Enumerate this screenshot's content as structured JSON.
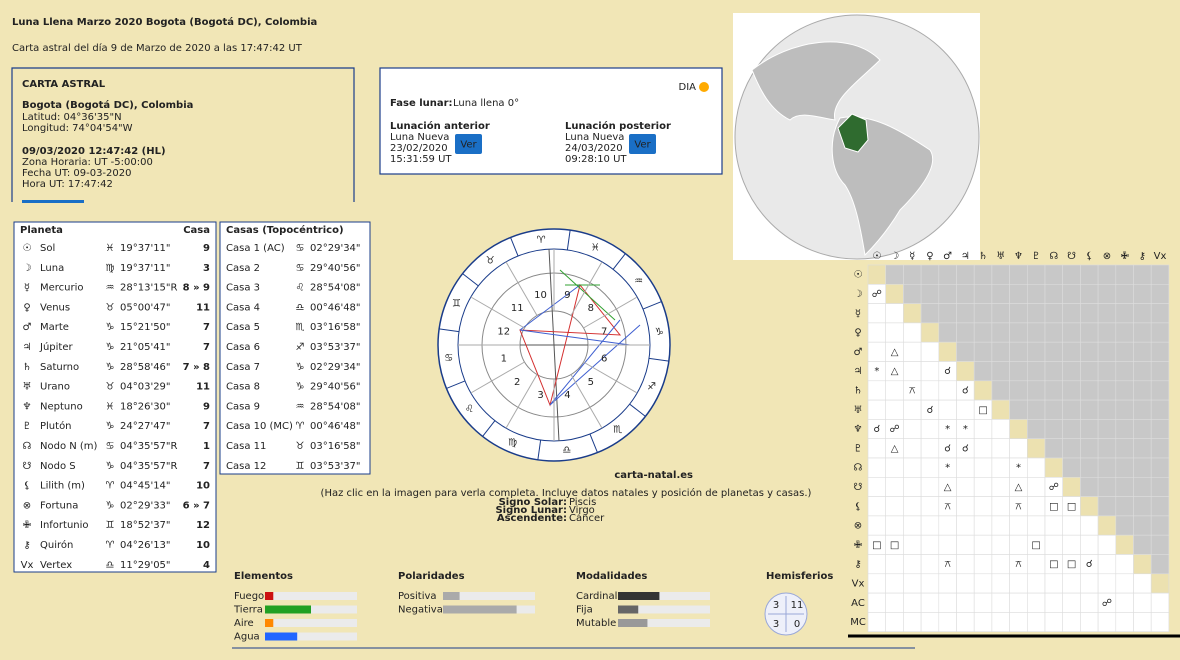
{
  "header": {
    "title": "Luna Llena Marzo 2020 Bogota (Bogotá DC), Colombia",
    "subtitle": "Carta astral del día 9 de Marzo de 2020 a las 17:47:42 UT"
  },
  "info": {
    "heading": "CARTA ASTRAL",
    "place": "Bogota (Bogotá DC), Colombia",
    "coords": [
      "Latitud: 04°36'35\"N",
      "Longitud: 74°04'54\"W"
    ],
    "datetime": "09/03/2020 12:47:42 (HL)",
    "times": [
      "Zona Horaria: UT -5:00:00",
      "Fecha UT: 09-03-2020",
      "Hora UT: 17:47:42"
    ]
  },
  "moon": {
    "day": "DIA",
    "phase_label": "Fase lunar:",
    "phase": "Luna llena 0°",
    "prev": {
      "title": "Lunación anterior",
      "lines": [
        "Luna Nueva",
        "23/02/2020",
        "15:31:59 UT"
      ],
      "button": "Ver"
    },
    "next": {
      "title": "Lunación posterior",
      "lines": [
        "Luna Nueva",
        "24/03/2020",
        "09:28:10 UT"
      ],
      "button": "Ver"
    }
  },
  "planets": {
    "headers": [
      "Planeta",
      "Casa"
    ],
    "rows": [
      {
        "symbol": "☉",
        "name": "Sol",
        "sign": "♓",
        "position": "19°37'11\"",
        "house": "9"
      },
      {
        "symbol": "☽",
        "name": "Luna",
        "sign": "♍",
        "position": "19°37'11\"",
        "house": "3"
      },
      {
        "symbol": "☿",
        "name": "Mercurio",
        "sign": "♒",
        "position": "28°13'15\"R",
        "house": "8 » 9"
      },
      {
        "symbol": "♀",
        "name": "Venus",
        "sign": "♉",
        "position": "05°00'47\"",
        "house": "11"
      },
      {
        "symbol": "♂",
        "name": "Marte",
        "sign": "♑",
        "position": "15°21'50\"",
        "house": "7"
      },
      {
        "symbol": "♃",
        "name": "Júpiter",
        "sign": "♑",
        "position": "21°05'41\"",
        "house": "7"
      },
      {
        "symbol": "♄",
        "name": "Saturno",
        "sign": "♑",
        "position": "28°58'46\"",
        "house": "7 » 8"
      },
      {
        "symbol": "♅",
        "name": "Urano",
        "sign": "♉",
        "position": "04°03'29\"",
        "house": "11"
      },
      {
        "symbol": "♆",
        "name": "Neptuno",
        "sign": "♓",
        "position": "18°26'30\"",
        "house": "9"
      },
      {
        "symbol": "♇",
        "name": "Plutón",
        "sign": "♑",
        "position": "24°27'47\"",
        "house": "7"
      },
      {
        "symbol": "☊",
        "name": "Nodo N (m)",
        "sign": "♋",
        "position": "04°35'57\"R",
        "house": "1"
      },
      {
        "symbol": "☋",
        "name": "Nodo S",
        "sign": "♑",
        "position": "04°35'57\"R",
        "house": "7"
      },
      {
        "symbol": "⚸",
        "name": "Lilith (m)",
        "sign": "♈",
        "position": "04°45'14\"",
        "house": "10"
      },
      {
        "symbol": "⊗",
        "name": "Fortuna",
        "sign": "♑",
        "position": "02°29'33\"",
        "house": "6 » 7"
      },
      {
        "symbol": "✙",
        "name": "Infortunio",
        "sign": "♊",
        "position": "18°52'37\"",
        "house": "12"
      },
      {
        "symbol": "⚷",
        "name": "Quirón",
        "sign": "♈",
        "position": "04°26'13\"",
        "house": "10"
      },
      {
        "symbol": "Vx",
        "name": "Vertex",
        "sign": "♎",
        "position": "11°29'05\"",
        "house": "4"
      }
    ]
  },
  "houses": {
    "header": "Casas (Topocéntrico)",
    "rows": [
      {
        "name": "Casa 1 (AC)",
        "sign": "♋",
        "position": "02°29'34\""
      },
      {
        "name": "Casa 2",
        "sign": "♋",
        "position": "29°40'56\""
      },
      {
        "name": "Casa 3",
        "sign": "♌",
        "position": "28°54'08\""
      },
      {
        "name": "Casa 4",
        "sign": "♎",
        "position": "00°46'48\""
      },
      {
        "name": "Casa 5",
        "sign": "♏",
        "position": "03°16'58\""
      },
      {
        "name": "Casa 6",
        "sign": "♐",
        "position": "03°53'37\""
      },
      {
        "name": "Casa 7",
        "sign": "♑",
        "position": "02°29'34\""
      },
      {
        "name": "Casa 8",
        "sign": "♑",
        "position": "29°40'56\""
      },
      {
        "name": "Casa 9",
        "sign": "♒",
        "position": "28°54'08\""
      },
      {
        "name": "Casa 10 (MC)",
        "sign": "♈",
        "position": "00°46'48\""
      },
      {
        "name": "Casa 11",
        "sign": "♉",
        "position": "03°16'58\""
      },
      {
        "name": "Casa 12",
        "sign": "♊",
        "position": "03°53'37\""
      }
    ]
  },
  "wheel": {
    "signs": [
      "♈",
      "♉",
      "♊",
      "♋",
      "♌",
      "♍",
      "♎",
      "♏",
      "♐",
      "♑",
      "♒",
      "♓"
    ],
    "sign_colors": [
      "#d42020",
      "#2a9a2a",
      "#e08a00",
      "#2050d0"
    ],
    "houses": [
      "1",
      "2",
      "3",
      "4",
      "5",
      "6",
      "7",
      "8",
      "9",
      "10",
      "11",
      "12"
    ],
    "site": "carta-natal.es",
    "caption": "(Haz clic en la imagen para verla completa. Incluye datos natales y posición de planetas y casas.)",
    "summary": [
      {
        "label": "Signo Solar:",
        "value": "Piscis"
      },
      {
        "label": "Signo Lunar:",
        "value": "Virgo"
      },
      {
        "label": "Ascendente:",
        "value": "Cáncer"
      }
    ]
  },
  "aspects": {
    "columns": [
      "☉",
      "☽",
      "☿",
      "♀",
      "♂",
      "♃",
      "♄",
      "♅",
      "♆",
      "♇",
      "☊",
      "☋",
      "⚸",
      "⊗",
      "✙",
      "⚷",
      "Vx"
    ],
    "symbol_colors": {
      "☌": "#d42020",
      "☍": "#d42020",
      "□": "#d42020",
      "△": "#2050d0",
      "*": "#2050d0",
      "⚻": "#2a9a2a"
    },
    "rows": [
      {
        "label": "☉",
        "cells": []
      },
      {
        "label": "☽",
        "cells": [
          "☍"
        ]
      },
      {
        "label": "☿",
        "cells": [
          null,
          null
        ]
      },
      {
        "label": "♀",
        "cells": [
          null,
          null,
          null
        ]
      },
      {
        "label": "♂",
        "cells": [
          null,
          "△",
          null,
          null
        ]
      },
      {
        "label": "♃",
        "cells": [
          "*",
          "△",
          null,
          null,
          "☌"
        ]
      },
      {
        "label": "♄",
        "cells": [
          null,
          null,
          "⚻",
          null,
          null,
          "☌"
        ]
      },
      {
        "label": "♅",
        "cells": [
          null,
          null,
          null,
          "☌",
          null,
          null,
          "□"
        ]
      },
      {
        "label": "♆",
        "cells": [
          "☌",
          "☍",
          null,
          null,
          "*",
          "*",
          null,
          null
        ]
      },
      {
        "label": "♇",
        "cells": [
          null,
          "△",
          null,
          null,
          "☌",
          "☌",
          null,
          null,
          null
        ]
      },
      {
        "label": "☊",
        "cells": [
          null,
          null,
          null,
          null,
          "*",
          null,
          null,
          null,
          "*",
          null
        ]
      },
      {
        "label": "☋",
        "cells": [
          null,
          null,
          null,
          null,
          "△",
          null,
          null,
          null,
          "△",
          null,
          "☍"
        ]
      },
      {
        "label": "⚸",
        "cells": [
          null,
          null,
          null,
          null,
          "⚻",
          null,
          null,
          null,
          "⚻",
          null,
          "□",
          "□"
        ]
      },
      {
        "label": "⊗",
        "cells": [
          null,
          null,
          null,
          null,
          null,
          null,
          null,
          null,
          null,
          null,
          null,
          null,
          null
        ]
      },
      {
        "label": "✙",
        "cells": [
          "□",
          "□",
          null,
          null,
          null,
          null,
          null,
          null,
          null,
          "□",
          null,
          null,
          null,
          null
        ]
      },
      {
        "label": "⚷",
        "cells": [
          null,
          null,
          null,
          null,
          "⚻",
          null,
          null,
          null,
          "⚻",
          null,
          "□",
          "□",
          "☌",
          null,
          null
        ]
      },
      {
        "label": "Vx",
        "cells": [
          null,
          null,
          null,
          null,
          null,
          null,
          null,
          null,
          null,
          null,
          null,
          null,
          null,
          null,
          null,
          null
        ]
      },
      {
        "label": "AC",
        "cells": [
          null,
          null,
          null,
          null,
          null,
          null,
          null,
          null,
          null,
          null,
          null,
          null,
          null,
          "☍",
          null,
          null,
          null
        ]
      },
      {
        "label": "MC",
        "cells": [
          null,
          null,
          null,
          null,
          null,
          null,
          null,
          null,
          null,
          null,
          null,
          null,
          null,
          null,
          null,
          null,
          null
        ]
      }
    ]
  },
  "stats": {
    "xlim": [
      0,
      100
    ],
    "groups": [
      {
        "title": "Elementos",
        "items": [
          {
            "label": "Fuego",
            "value": 9,
            "color": "#cc1111"
          },
          {
            "label": "Tierra",
            "value": 50,
            "color": "#22a022"
          },
          {
            "label": "Aire",
            "value": 9,
            "color": "#ff8800"
          },
          {
            "label": "Agua",
            "value": 35,
            "color": "#2266ff"
          }
        ]
      },
      {
        "title": "Polaridades",
        "items": [
          {
            "label": "Positiva",
            "value": 18,
            "color": "#aaaaaa"
          },
          {
            "label": "Negativa",
            "value": 80,
            "color": "#aaaaaa"
          }
        ]
      },
      {
        "title": "Modalidades",
        "items": [
          {
            "label": "Cardinal",
            "value": 45,
            "color": "#333333"
          },
          {
            "label": "Fija",
            "value": 22,
            "color": "#666666"
          },
          {
            "label": "Mutable",
            "value": 32,
            "color": "#999999"
          }
        ]
      }
    ],
    "hemispheres": {
      "title": "Hemisferios",
      "values": [
        3,
        11,
        3,
        0
      ]
    }
  }
}
